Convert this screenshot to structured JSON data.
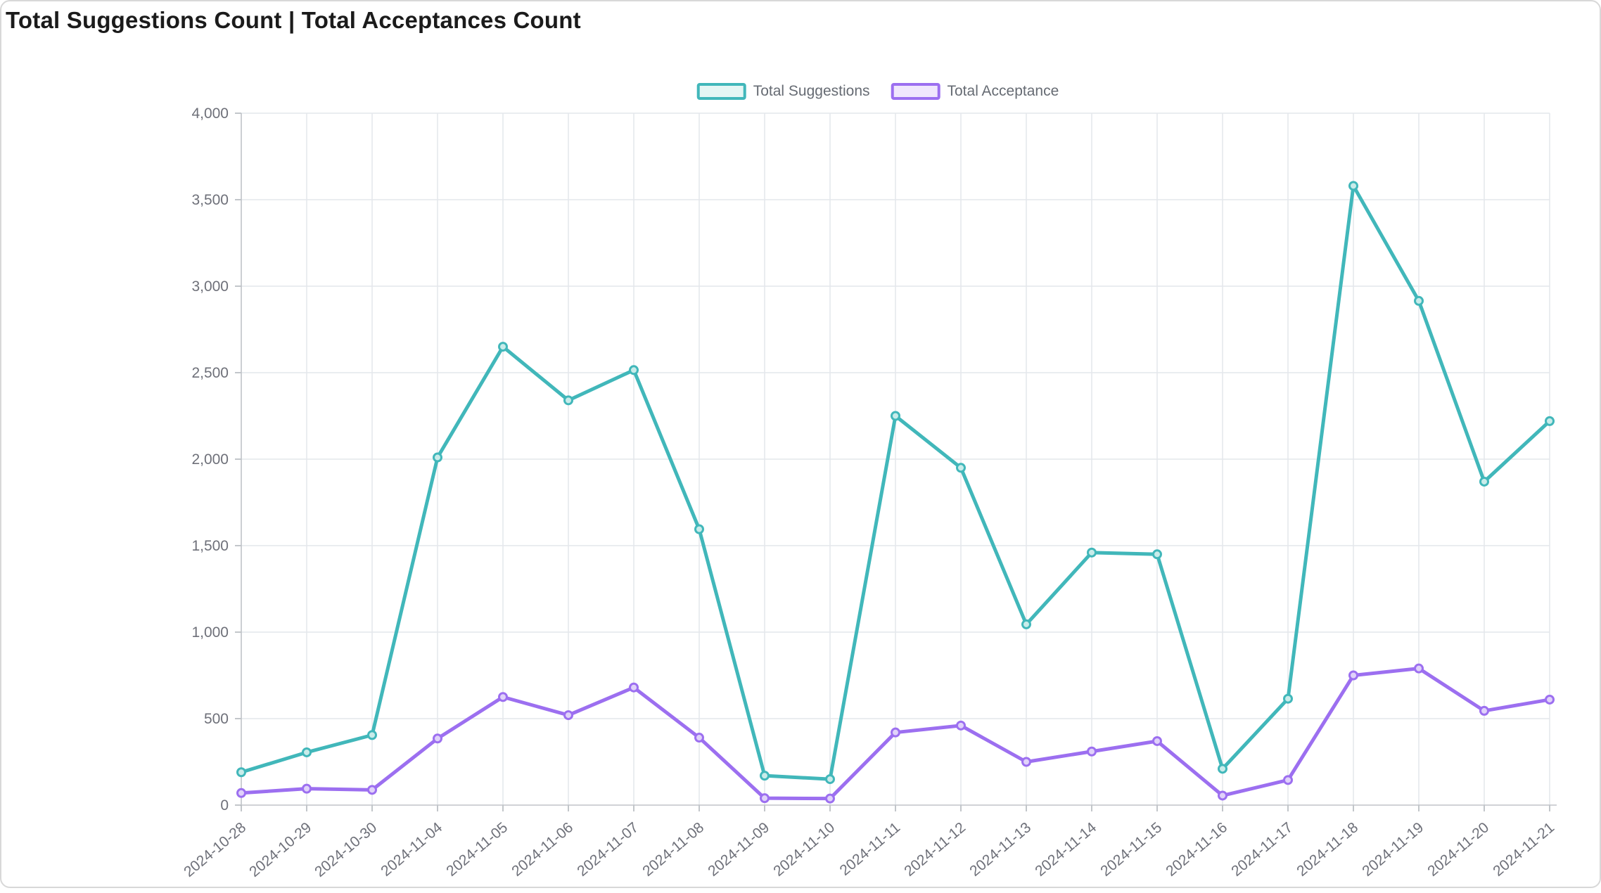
{
  "page": {
    "title": "Total Suggestions Count | Total Acceptances Count"
  },
  "legend": {
    "position": "top-center",
    "items": [
      {
        "label": "Total Suggestions",
        "color": "#41b7ba",
        "fill": "#e4f6f4"
      },
      {
        "label": "Total Acceptance",
        "color": "#9c6ff0",
        "fill": "#f0e7fd"
      }
    ]
  },
  "chart_data": {
    "type": "line",
    "title": "Total Suggestions Count | Total Acceptances Count",
    "categories": [
      "2024-10-28",
      "2024-10-29",
      "2024-10-30",
      "2024-11-04",
      "2024-11-05",
      "2024-11-06",
      "2024-11-07",
      "2024-11-08",
      "2024-11-09",
      "2024-11-10",
      "2024-11-11",
      "2024-11-12",
      "2024-11-13",
      "2024-11-14",
      "2024-11-15",
      "2024-11-16",
      "2024-11-17",
      "2024-11-18",
      "2024-11-19",
      "2024-11-20",
      "2024-11-21"
    ],
    "series": [
      {
        "name": "Total Suggestions",
        "color": "#41b7ba",
        "marker_fill": "#c9ecea",
        "values": [
          190,
          305,
          405,
          2010,
          2650,
          2340,
          2515,
          1595,
          170,
          150,
          2250,
          1950,
          1045,
          1460,
          1450,
          210,
          615,
          3580,
          2915,
          1870,
          2220
        ]
      },
      {
        "name": "Total Acceptance",
        "color": "#9c6ff0",
        "marker_fill": "#e0d2fa",
        "values": [
          70,
          95,
          88,
          385,
          625,
          520,
          680,
          390,
          40,
          38,
          420,
          460,
          250,
          310,
          370,
          55,
          145,
          750,
          790,
          545,
          610
        ]
      }
    ],
    "xlabel": "",
    "ylabel": "",
    "ylim": [
      0,
      4000
    ],
    "y_ticks": [
      "0",
      "500",
      "1,000",
      "1,500",
      "2,000",
      "2,500",
      "3,000",
      "3,500",
      "4,000"
    ],
    "grid": true,
    "x_label_rotation": -40,
    "legend_position": "top-center"
  },
  "style": {
    "grid_line_color": "#e4e7ec",
    "axis_line_color": "#c0c3c8",
    "tick_color": "#9aa0a6",
    "axis_label_color": "#6E7079"
  }
}
